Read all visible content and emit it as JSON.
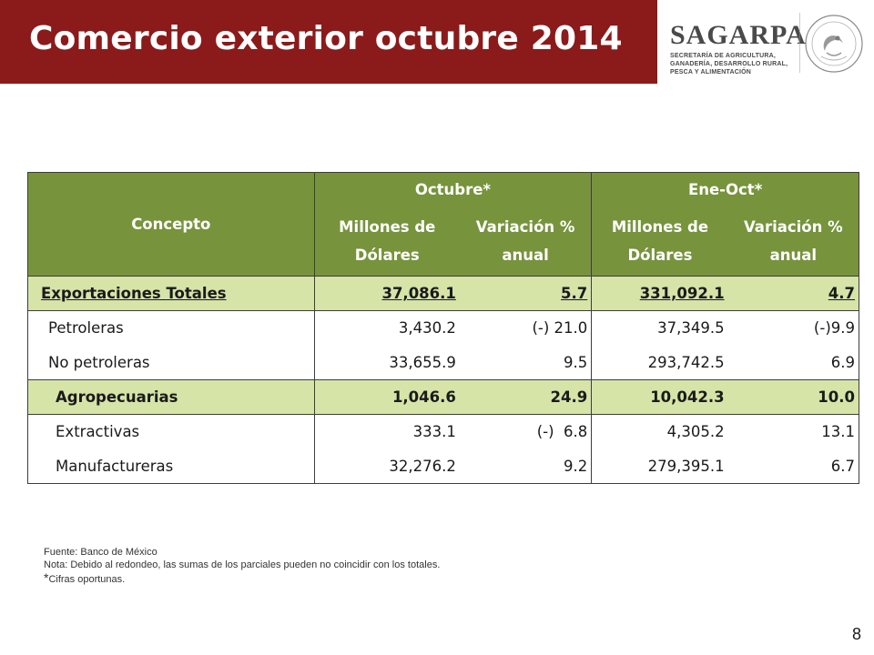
{
  "header": {
    "title": "Comercio exterior octubre 2014"
  },
  "logo": {
    "word": "SAGARPA",
    "line1": "SECRETARÍA DE AGRICULTURA,",
    "line2": "GANADERÍA, DESARROLLO RURAL,",
    "line3": "PESCA Y ALIMENTACIÓN",
    "seal_icon": "mexico-coat-of-arms-seal",
    "seal_text": "ESTADOS UNIDOS MEXICANOS"
  },
  "colors": {
    "header_bg": "#8b1a1a",
    "table_header_bg": "#77933c",
    "highlight_row_bg": "#d6e4a8"
  },
  "table": {
    "concepto_header": "Concepto",
    "period1": "Octubre*",
    "period2": "Ene-Oct*",
    "sub_millones_1": "Millones de",
    "sub_millones_2": "Dólares",
    "sub_var_1": "Variación %",
    "sub_var_2": "anual",
    "rows": [
      {
        "label": "Exportaciones Totales",
        "oct_mdd": "37,086.1",
        "oct_var": "5.7",
        "ytd_mdd": "331,092.1",
        "ytd_var": "4.7"
      },
      {
        "label": "Petroleras",
        "oct_mdd": "3,430.2",
        "oct_var": "(-) 21.0",
        "ytd_mdd": "37,349.5",
        "ytd_var": "(-)9.9"
      },
      {
        "label": "No petroleras",
        "oct_mdd": "33,655.9",
        "oct_var": "9.5",
        "ytd_mdd": "293,742.5",
        "ytd_var": "6.9"
      },
      {
        "label": "Agropecuarias",
        "oct_mdd": "1,046.6",
        "oct_var": "24.9",
        "ytd_mdd": "10,042.3",
        "ytd_var": "10.0"
      },
      {
        "label": "Extractivas",
        "oct_mdd": "333.1",
        "oct_var": "(-)  6.8",
        "ytd_mdd": "4,305.2",
        "ytd_var": "13.1"
      },
      {
        "label": "Manufactureras",
        "oct_mdd": "32,276.2",
        "oct_var": "9.2",
        "ytd_mdd": "279,395.1",
        "ytd_var": "6.7"
      }
    ]
  },
  "notes": {
    "source": "Fuente: Banco de México",
    "note": "Nota: Debido al redondeo, las sumas de los parciales pueden no coincidir con los totales.",
    "asterisk": "*",
    "cifras": "Cifras oportunas."
  },
  "page_number": "8"
}
